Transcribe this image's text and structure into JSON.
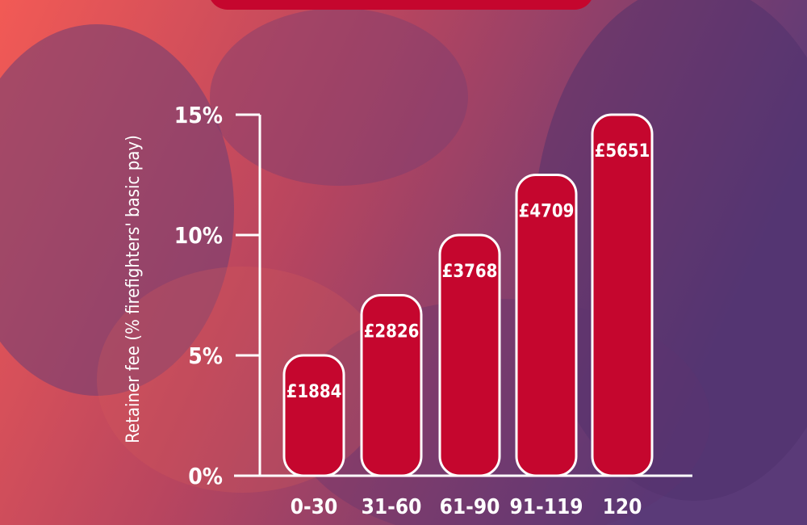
{
  "colors": {
    "background_left": "#f25a55",
    "background_right": "#5a3a78",
    "bar_fill": "#c5062e",
    "bar_stroke": "#ffffff",
    "axis": "#ffffff",
    "text": "#ffffff"
  },
  "chart_data": {
    "type": "bar",
    "categories": [
      "0-30",
      "31-60",
      "61-90",
      "91-119",
      "120"
    ],
    "values": [
      5,
      7.5,
      10,
      12.5,
      15
    ],
    "data_labels": [
      "£1884",
      "£2826",
      "£3768",
      "£4709",
      "£5651"
    ],
    "title": "",
    "xlabel": "",
    "ylabel": "Retainer fee (% firefighters' basic pay)",
    "ylim": [
      0,
      15
    ],
    "yticks": [
      "0%",
      "5%",
      "10%",
      "15%"
    ],
    "ytick_values": [
      0,
      5,
      10,
      15
    ],
    "grid": false,
    "legend": "none"
  }
}
